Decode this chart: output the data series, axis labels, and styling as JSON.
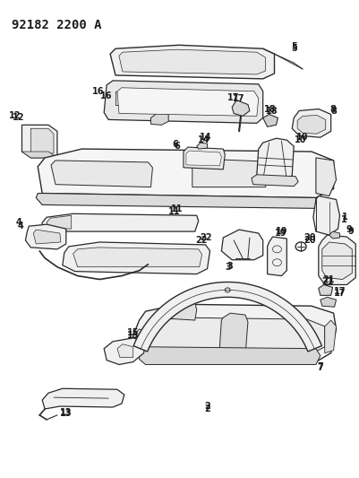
{
  "title": "92182 2200 A",
  "background_color": "#ffffff",
  "line_color": "#2a2a2a",
  "label_fontsize": 7.0,
  "title_fontsize": 10,
  "fig_width": 4.02,
  "fig_height": 5.33,
  "dpi": 100
}
